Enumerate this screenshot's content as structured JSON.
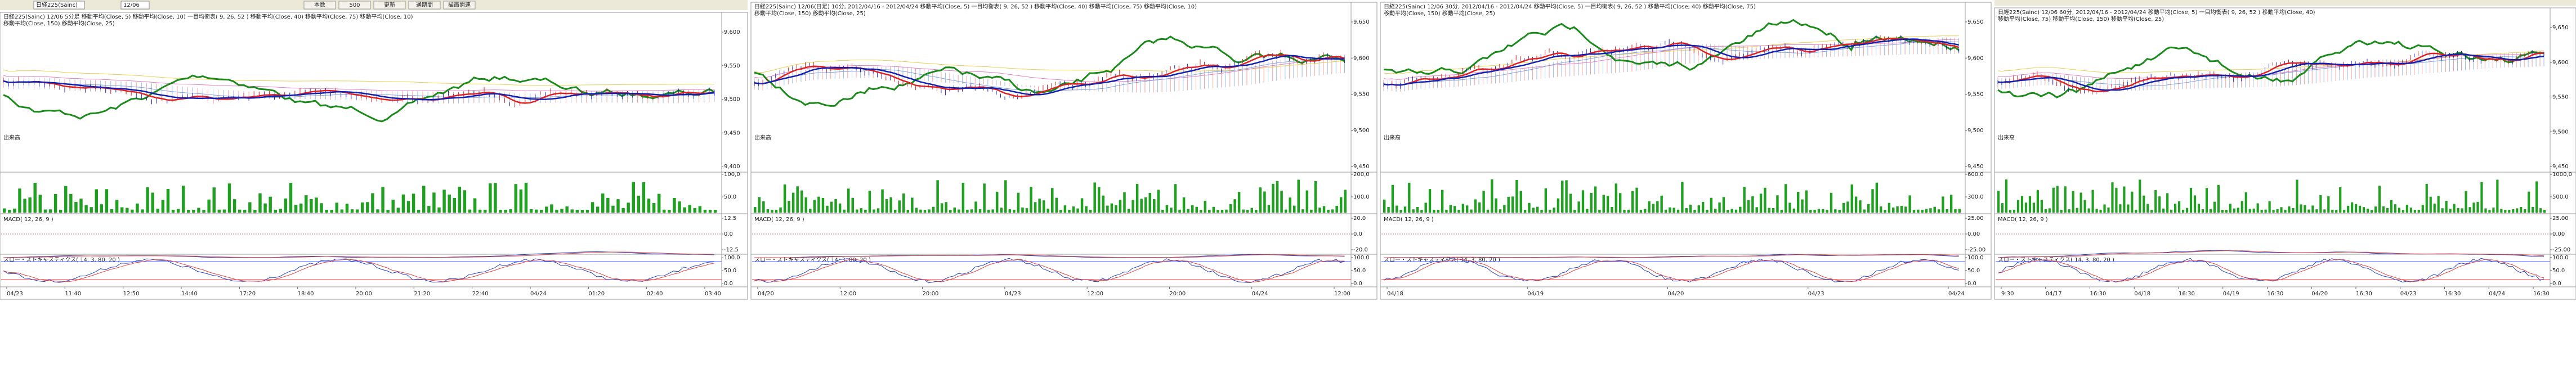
{
  "toolbar": {
    "symbol": "日経225(Sainc)",
    "contract": "12/06",
    "buttons": [
      "本数",
      "500",
      "更新",
      "通期間",
      "描画関連"
    ]
  },
  "panels": [
    {
      "legend": [
        "日経225(Sainc) 12/06 5分足  移動平均(Close, 5)  移動平均(Close, 10)  一目均衡表( 9, 26, 52 )  移動平均(Close, 40)  移動平均(Close, 75)  移動平均(Close, 10)",
        "移動平均(Close, 150)  移動平均(Close, 25)"
      ],
      "volume_label": "出来高",
      "macd_label": "MACD( 12, 26, 9 )",
      "stoch_label": "スロー・ストキャスティクス( 14, 3, 80, 20 )",
      "price_ticks": [
        "9,600",
        "9,550",
        "9,500",
        "9,450",
        "9,400"
      ],
      "volume_ticks": [
        "100,0",
        "50,0"
      ],
      "macd_ticks": [
        "12.5",
        "0.0",
        "-12.5"
      ],
      "stoch_ticks": [
        "100.0",
        "50.0",
        "0.0"
      ],
      "time_labels": [
        "04/23",
        "11:40",
        "12:50",
        "14:40",
        "17:20",
        "18:40",
        "20:00",
        "21:20",
        "22:40",
        "04/24",
        "01:20",
        "02:40",
        "03:40"
      ]
    },
    {
      "legend": [
        "日経225(Sainc) 12/06(日足) 10分, 2012/04/16 - 2012/04/24  移動平均(Close, 5)  一目均衡表( 9, 26, 52 )  移動平均(Close, 40)  移動平均(Close, 75)  移動平均(Close, 10)",
        "移動平均(Close, 150)  移動平均(Close, 25)"
      ],
      "volume_label": "出来高",
      "macd_label": "MACD( 12, 26, 9 )",
      "stoch_label": "スロー・ストキャスティクス( 14, 3, 80, 20 )",
      "price_ticks": [
        "9,650",
        "9,600",
        "9,550",
        "9,500",
        "9,450"
      ],
      "volume_ticks": [
        "200,0",
        "100,0"
      ],
      "macd_ticks": [
        "20.0",
        "0.0",
        "-20.0"
      ],
      "stoch_ticks": [
        "100.0",
        "50.0",
        "0.0"
      ],
      "time_labels": [
        "04/20",
        "12:00",
        "20:00",
        "04/23",
        "12:00",
        "20:00",
        "04/24",
        "12:00"
      ]
    },
    {
      "legend": [
        "日経225(Sainc) 12/06 30分, 2012/04/16 - 2012/04/24  移動平均(Close, 5)  一目均衡表( 9, 26, 52 )  移動平均(Close, 40)  移動平均(Close, 75)",
        "移動平均(Close, 150)  移動平均(Close, 25)"
      ],
      "volume_label": "出来高",
      "macd_label": "MACD( 12, 26, 9 )",
      "stoch_label": "スロー・ストキャスティクス( 14, 3, 80, 20 )",
      "price_ticks": [
        "9,650",
        "9,600",
        "9,550",
        "9,500",
        "9,450"
      ],
      "volume_ticks": [
        "600,0",
        "300,0"
      ],
      "macd_ticks": [
        "25.00",
        "0.00",
        "-25.00"
      ],
      "stoch_ticks": [
        "100.0",
        "50.0",
        "0.0"
      ],
      "time_labels": [
        "04/18",
        "04/19",
        "04/20",
        "04/23",
        "04/24"
      ]
    },
    {
      "legend": [
        "日経225(Sainc) 12/06 60分, 2012/04/16 - 2012/04/24  移動平均(Close, 5)  一目均衡表( 9, 26, 52 )  移動平均(Close, 40)",
        "移動平均(Close, 75)  移動平均(Close, 150)  移動平均(Close, 25)"
      ],
      "volume_label": "出来高",
      "macd_label": "MACD( 12, 26, 9 )",
      "stoch_label": "スロー・ストキャスティクス( 14, 3, 80, 20 )",
      "price_ticks": [
        "9,650",
        "9,600",
        "9,550",
        "9,500",
        "9,450"
      ],
      "volume_ticks": [
        "1000,0",
        "500,0"
      ],
      "macd_ticks": [
        "25.00",
        "0.00",
        "-25.00"
      ],
      "stoch_ticks": [
        "100.0",
        "50.0",
        "0.0"
      ],
      "time_labels": [
        "9:30",
        "04/17",
        "16:30",
        "04/18",
        "16:30",
        "04/19",
        "16:30",
        "04/20",
        "16:30",
        "04/23",
        "16:30",
        "04/24",
        "16:30"
      ]
    }
  ]
}
